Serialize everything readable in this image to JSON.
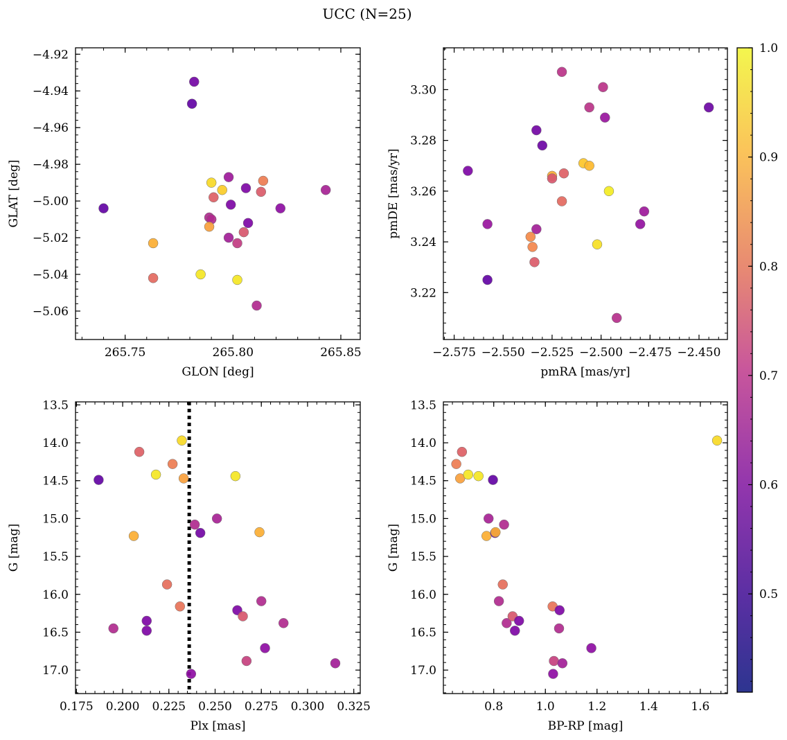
{
  "figure": {
    "title": "UCC (N=25)"
  },
  "colorbar": {
    "colormap": "plasma",
    "range": [
      0.41,
      1.0
    ],
    "ticks": [
      "0.5",
      "0.6",
      "0.7",
      "0.8",
      "0.9",
      "1.0"
    ],
    "tick_values": [
      0.5,
      0.6,
      0.7,
      0.8,
      0.9,
      1.0
    ]
  },
  "chart_data": [
    {
      "type": "scatter",
      "xlabel": "GLON [deg]",
      "ylabel": "GLAT [deg]",
      "xlim": [
        265.727,
        265.859
      ],
      "ylim": [
        -5.0755,
        -4.9165
      ],
      "xticks": [
        265.75,
        265.8,
        265.85
      ],
      "xtick_labels": [
        "265.75",
        "265.80",
        "265.85"
      ],
      "yticks": [
        -4.92,
        -4.94,
        -4.96,
        -4.98,
        -5.0,
        -5.02,
        -5.04,
        -5.06
      ],
      "ytick_labels": [
        "−4.92",
        "−4.94",
        "−4.96",
        "−4.98",
        "−5.00",
        "−5.02",
        "−5.04",
        "−5.06"
      ],
      "yinverted": false,
      "points": [
        {
          "x": 265.74,
          "y": -5.004,
          "c": 0.45
        },
        {
          "x": 265.782,
          "y": -4.935,
          "c": 0.48
        },
        {
          "x": 265.781,
          "y": -4.947,
          "c": 0.45
        },
        {
          "x": 265.763,
          "y": -5.023,
          "c": 0.88
        },
        {
          "x": 265.763,
          "y": -5.042,
          "c": 0.74
        },
        {
          "x": 265.785,
          "y": -5.04,
          "c": 0.97
        },
        {
          "x": 265.79,
          "y": -4.99,
          "c": 0.95
        },
        {
          "x": 265.795,
          "y": -4.994,
          "c": 0.93
        },
        {
          "x": 265.791,
          "y": -4.998,
          "c": 0.72
        },
        {
          "x": 265.789,
          "y": -5.009,
          "c": 0.6
        },
        {
          "x": 265.79,
          "y": -5.01,
          "c": 0.6
        },
        {
          "x": 265.789,
          "y": -5.014,
          "c": 0.85
        },
        {
          "x": 265.798,
          "y": -4.987,
          "c": 0.56
        },
        {
          "x": 265.799,
          "y": -5.002,
          "c": 0.5
        },
        {
          "x": 265.798,
          "y": -5.02,
          "c": 0.57
        },
        {
          "x": 265.802,
          "y": -5.023,
          "c": 0.64
        },
        {
          "x": 265.802,
          "y": -5.043,
          "c": 0.97
        },
        {
          "x": 265.805,
          "y": -5.017,
          "c": 0.7
        },
        {
          "x": 265.806,
          "y": -4.993,
          "c": 0.5
        },
        {
          "x": 265.807,
          "y": -5.012,
          "c": 0.5
        },
        {
          "x": 265.811,
          "y": -5.057,
          "c": 0.6
        },
        {
          "x": 265.813,
          "y": -4.995,
          "c": 0.71
        },
        {
          "x": 265.814,
          "y": -4.989,
          "c": 0.78
        },
        {
          "x": 265.822,
          "y": -5.004,
          "c": 0.53
        },
        {
          "x": 265.843,
          "y": -4.994,
          "c": 0.58
        }
      ]
    },
    {
      "type": "scatter",
      "xlabel": "pmRA [mas/yr]",
      "ylabel": "pmDE [mas/yr]",
      "xlim": [
        -2.5805,
        -2.4355
      ],
      "ylim": [
        3.2015,
        3.3165
      ],
      "xticks": [
        -2.575,
        -2.55,
        -2.525,
        -2.5,
        -2.475,
        -2.45
      ],
      "xtick_labels": [
        "−2.575",
        "−2.550",
        "−2.525",
        "−2.500",
        "−2.475",
        "−2.450"
      ],
      "yticks": [
        3.22,
        3.24,
        3.26,
        3.28,
        3.3
      ],
      "ytick_labels": [
        "3.22",
        "3.24",
        "3.26",
        "3.28",
        "3.30"
      ],
      "yinverted": false,
      "points": [
        {
          "x": -2.568,
          "y": 3.268,
          "c": 0.5
        },
        {
          "x": -2.558,
          "y": 3.247,
          "c": 0.55
        },
        {
          "x": -2.558,
          "y": 3.225,
          "c": 0.45
        },
        {
          "x": -2.533,
          "y": 3.284,
          "c": 0.48
        },
        {
          "x": -2.53,
          "y": 3.278,
          "c": 0.47
        },
        {
          "x": -2.533,
          "y": 3.245,
          "c": 0.57
        },
        {
          "x": -2.536,
          "y": 3.242,
          "c": 0.81
        },
        {
          "x": -2.535,
          "y": 3.238,
          "c": 0.8
        },
        {
          "x": -2.534,
          "y": 3.232,
          "c": 0.71
        },
        {
          "x": -2.525,
          "y": 3.266,
          "c": 0.88
        },
        {
          "x": -2.525,
          "y": 3.265,
          "c": 0.7
        },
        {
          "x": -2.519,
          "y": 3.267,
          "c": 0.72
        },
        {
          "x": -2.52,
          "y": 3.256,
          "c": 0.74
        },
        {
          "x": -2.52,
          "y": 3.307,
          "c": 0.62
        },
        {
          "x": -2.509,
          "y": 3.271,
          "c": 0.92
        },
        {
          "x": -2.506,
          "y": 3.27,
          "c": 0.9
        },
        {
          "x": -2.506,
          "y": 3.293,
          "c": 0.62
        },
        {
          "x": -2.502,
          "y": 3.239,
          "c": 0.96
        },
        {
          "x": -2.499,
          "y": 3.301,
          "c": 0.62
        },
        {
          "x": -2.498,
          "y": 3.289,
          "c": 0.55
        },
        {
          "x": -2.496,
          "y": 3.26,
          "c": 0.98
        },
        {
          "x": -2.492,
          "y": 3.21,
          "c": 0.61
        },
        {
          "x": -2.48,
          "y": 3.247,
          "c": 0.54
        },
        {
          "x": -2.478,
          "y": 3.252,
          "c": 0.56
        },
        {
          "x": -2.445,
          "y": 3.293,
          "c": 0.47
        }
      ]
    },
    {
      "type": "scatter",
      "xlabel": "Plx [mas]",
      "ylabel": "G [mag]",
      "xlim": [
        0.1745,
        0.3285
      ],
      "ylim": [
        17.31,
        13.46
      ],
      "xticks": [
        0.175,
        0.2,
        0.225,
        0.25,
        0.275,
        0.3,
        0.325
      ],
      "xtick_labels": [
        "0.175",
        "0.200",
        "0.225",
        "0.250",
        "0.275",
        "0.300",
        "0.325"
      ],
      "yticks": [
        13.5,
        14.0,
        14.5,
        15.0,
        15.5,
        16.0,
        16.5,
        17.0
      ],
      "ytick_labels": [
        "13.5",
        "14.0",
        "14.5",
        "15.0",
        "15.5",
        "16.0",
        "16.5",
        "17.0"
      ],
      "yinverted": true,
      "vline_x": 0.236,
      "points": [
        {
          "x": 0.187,
          "y": 14.49,
          "c": 0.45
        },
        {
          "x": 0.195,
          "y": 16.45,
          "c": 0.6
        },
        {
          "x": 0.206,
          "y": 15.23,
          "c": 0.88
        },
        {
          "x": 0.209,
          "y": 14.12,
          "c": 0.72
        },
        {
          "x": 0.213,
          "y": 16.35,
          "c": 0.5
        },
        {
          "x": 0.213,
          "y": 16.48,
          "c": 0.5
        },
        {
          "x": 0.218,
          "y": 14.42,
          "c": 0.97
        },
        {
          "x": 0.224,
          "y": 15.87,
          "c": 0.75
        },
        {
          "x": 0.227,
          "y": 14.28,
          "c": 0.78
        },
        {
          "x": 0.231,
          "y": 16.16,
          "c": 0.76
        },
        {
          "x": 0.232,
          "y": 13.97,
          "c": 0.95
        },
        {
          "x": 0.233,
          "y": 14.47,
          "c": 0.85
        },
        {
          "x": 0.237,
          "y": 17.05,
          "c": 0.53
        },
        {
          "x": 0.239,
          "y": 15.08,
          "c": 0.6
        },
        {
          "x": 0.242,
          "y": 15.19,
          "c": 0.48
        },
        {
          "x": 0.251,
          "y": 15.0,
          "c": 0.58
        },
        {
          "x": 0.261,
          "y": 14.44,
          "c": 0.97
        },
        {
          "x": 0.262,
          "y": 16.21,
          "c": 0.5
        },
        {
          "x": 0.265,
          "y": 16.29,
          "c": 0.7
        },
        {
          "x": 0.267,
          "y": 16.88,
          "c": 0.65
        },
        {
          "x": 0.274,
          "y": 15.18,
          "c": 0.88
        },
        {
          "x": 0.275,
          "y": 16.09,
          "c": 0.6
        },
        {
          "x": 0.277,
          "y": 16.71,
          "c": 0.53
        },
        {
          "x": 0.287,
          "y": 16.38,
          "c": 0.6
        },
        {
          "x": 0.315,
          "y": 16.91,
          "c": 0.57
        }
      ]
    },
    {
      "type": "scatter",
      "xlabel": "BP-RP [mag]",
      "ylabel": "G [mag]",
      "xlim": [
        0.605,
        1.705
      ],
      "ylim": [
        17.31,
        13.46
      ],
      "xticks": [
        0.8,
        1.0,
        1.2,
        1.4,
        1.6
      ],
      "xtick_labels": [
        "0.8",
        "1.0",
        "1.2",
        "1.4",
        "1.6"
      ],
      "yticks": [
        13.5,
        14.0,
        14.5,
        15.0,
        15.5,
        16.0,
        16.5,
        17.0
      ],
      "ytick_labels": [
        "13.5",
        "14.0",
        "14.5",
        "15.0",
        "15.5",
        "16.0",
        "16.5",
        "17.0"
      ],
      "yinverted": true,
      "points": [
        {
          "x": 0.655,
          "y": 14.28,
          "c": 0.78
        },
        {
          "x": 0.677,
          "y": 14.12,
          "c": 0.72
        },
        {
          "x": 0.67,
          "y": 14.47,
          "c": 0.85
        },
        {
          "x": 0.701,
          "y": 14.42,
          "c": 0.97
        },
        {
          "x": 0.741,
          "y": 14.44,
          "c": 0.97
        },
        {
          "x": 0.797,
          "y": 14.49,
          "c": 0.45
        },
        {
          "x": 0.78,
          "y": 15.0,
          "c": 0.58
        },
        {
          "x": 0.772,
          "y": 15.23,
          "c": 0.88
        },
        {
          "x": 0.805,
          "y": 15.19,
          "c": 0.48
        },
        {
          "x": 0.807,
          "y": 15.18,
          "c": 0.88
        },
        {
          "x": 0.84,
          "y": 15.08,
          "c": 0.6
        },
        {
          "x": 0.835,
          "y": 15.87,
          "c": 0.75
        },
        {
          "x": 0.82,
          "y": 16.09,
          "c": 0.6
        },
        {
          "x": 0.85,
          "y": 16.38,
          "c": 0.6
        },
        {
          "x": 0.873,
          "y": 16.29,
          "c": 0.7
        },
        {
          "x": 0.898,
          "y": 16.35,
          "c": 0.5
        },
        {
          "x": 0.882,
          "y": 16.48,
          "c": 0.5
        },
        {
          "x": 1.028,
          "y": 16.16,
          "c": 0.76
        },
        {
          "x": 1.055,
          "y": 16.21,
          "c": 0.5
        },
        {
          "x": 1.053,
          "y": 16.45,
          "c": 0.6
        },
        {
          "x": 1.033,
          "y": 16.88,
          "c": 0.65
        },
        {
          "x": 1.066,
          "y": 16.91,
          "c": 0.57
        },
        {
          "x": 1.03,
          "y": 17.05,
          "c": 0.53
        },
        {
          "x": 1.178,
          "y": 16.71,
          "c": 0.53
        },
        {
          "x": 1.665,
          "y": 13.97,
          "c": 0.95
        }
      ]
    }
  ]
}
